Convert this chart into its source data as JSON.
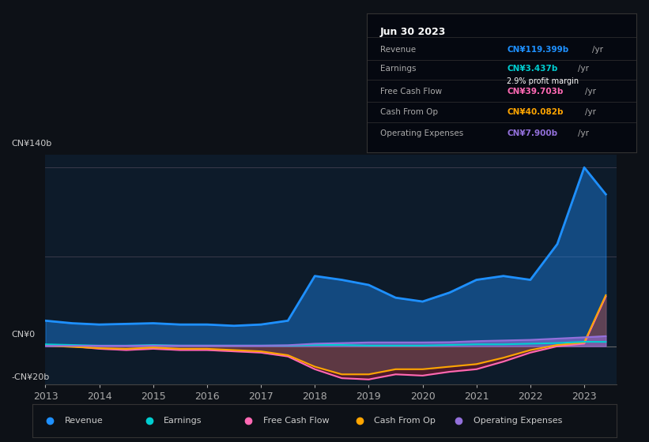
{
  "background_color": "#0d1117",
  "plot_bg_color": "#0d1b2a",
  "ylabel_top": "CN¥140b",
  "ylabel_zero": "CN¥0",
  "ylabel_neg": "-CN¥20b",
  "revenue_color": "#1e90ff",
  "earnings_color": "#00ced1",
  "fcf_color": "#ff69b4",
  "cashop_color": "#ffa500",
  "opex_color": "#9370db",
  "info_box": {
    "date": "Jun 30 2023",
    "revenue_val": "CN¥119.399b",
    "earnings_val": "CN¥3.437b",
    "profit_margin": "2.9%",
    "fcf_val": "CN¥39.703b",
    "cashop_val": "CN¥40.082b",
    "opex_val": "CN¥7.900b"
  }
}
